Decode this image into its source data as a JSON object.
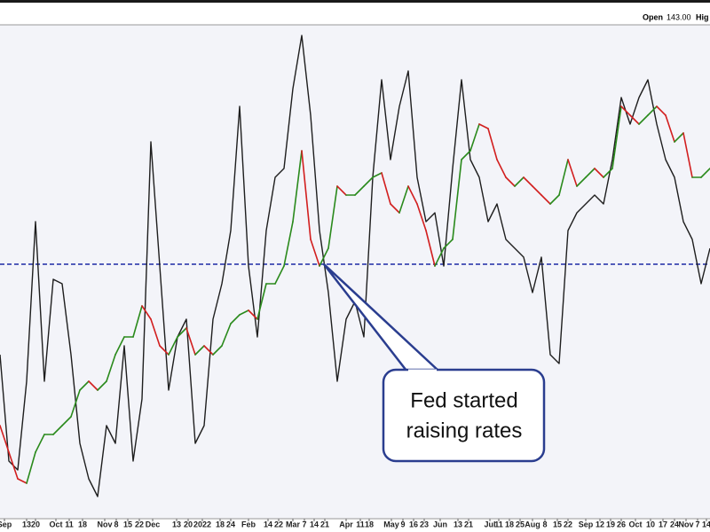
{
  "chart_data": {
    "type": "line",
    "header": {
      "open_label": "Open",
      "open_value": "143.00",
      "next_label": "Hig"
    },
    "series": [
      {
        "name": "Price",
        "color": "#1e1e1e",
        "values": [
          185,
          65,
          55,
          155,
          335,
          155,
          270,
          265,
          185,
          85,
          45,
          25,
          105,
          85,
          195,
          65,
          135,
          425,
          285,
          145,
          205,
          225,
          85,
          105,
          225,
          265,
          325,
          465,
          285,
          205,
          325,
          385,
          395,
          485,
          545,
          455,
          325,
          255,
          155,
          225,
          245,
          205,
          385,
          495,
          405,
          465,
          505,
          385,
          335,
          345,
          285,
          395,
          495,
          405,
          385,
          335,
          355,
          315,
          305,
          295,
          255,
          295,
          185,
          175,
          325,
          345,
          355,
          365,
          355,
          405,
          475,
          445,
          475,
          495,
          445,
          405,
          385,
          335,
          315,
          265,
          305
        ]
      },
      {
        "name": "Average",
        "up_color": "#2a8a1c",
        "down_color": "#d21f1f",
        "values": [
          105,
          75,
          45,
          40,
          75,
          95,
          95,
          105,
          115,
          145,
          155,
          145,
          155,
          185,
          205,
          205,
          240,
          225,
          195,
          185,
          205,
          215,
          185,
          195,
          185,
          195,
          220,
          230,
          235,
          225,
          265,
          265,
          285,
          335,
          415,
          315,
          285,
          305,
          375,
          365,
          365,
          375,
          385,
          390,
          355,
          345,
          375,
          355,
          325,
          285,
          305,
          315,
          405,
          415,
          445,
          440,
          405,
          385,
          375,
          385,
          375,
          365,
          355,
          365,
          405,
          375,
          385,
          395,
          385,
          395,
          465,
          455,
          445,
          455,
          465,
          455,
          425,
          435,
          385,
          385,
          395
        ]
      }
    ],
    "reference_line": {
      "value": 287,
      "color": "#1c2aa6"
    },
    "ylim": [
      0,
      557
    ],
    "xlim": [
      0,
      80
    ],
    "xticks": [
      {
        "value": 0.5,
        "label": "Sep"
      },
      {
        "value": 3,
        "label": "13"
      },
      {
        "value": 4,
        "label": "20"
      },
      {
        "value": 6.3,
        "label": "Oct"
      },
      {
        "value": 7.8,
        "label": "11"
      },
      {
        "value": 9.3,
        "label": "18"
      },
      {
        "value": 11.8,
        "label": "Nov"
      },
      {
        "value": 13.1,
        "label": "8"
      },
      {
        "value": 14.4,
        "label": "15"
      },
      {
        "value": 15.7,
        "label": "22"
      },
      {
        "value": 17.2,
        "label": "Dec"
      },
      {
        "value": 19.9,
        "label": "13"
      },
      {
        "value": 21.2,
        "label": "20"
      },
      {
        "value": 22.8,
        "label": "2022"
      },
      {
        "value": 24.8,
        "label": "18"
      },
      {
        "value": 26,
        "label": "24"
      },
      {
        "value": 28,
        "label": "Feb"
      },
      {
        "value": 30.2,
        "label": "14"
      },
      {
        "value": 31.4,
        "label": "22"
      },
      {
        "value": 33,
        "label": "Mar"
      },
      {
        "value": 34.3,
        "label": "7"
      },
      {
        "value": 35.4,
        "label": "14"
      },
      {
        "value": 36.6,
        "label": "21"
      },
      {
        "value": 39,
        "label": "Apr"
      },
      {
        "value": 40.6,
        "label": "11"
      },
      {
        "value": 41.6,
        "label": "18"
      },
      {
        "value": 44.1,
        "label": "May"
      },
      {
        "value": 45.4,
        "label": "9"
      },
      {
        "value": 46.6,
        "label": "16"
      },
      {
        "value": 47.8,
        "label": "23"
      },
      {
        "value": 49.6,
        "label": "Jun"
      },
      {
        "value": 51.6,
        "label": "13"
      },
      {
        "value": 52.8,
        "label": "21"
      },
      {
        "value": 55.2,
        "label": "Jul"
      },
      {
        "value": 56.2,
        "label": "11"
      },
      {
        "value": 57.4,
        "label": "18"
      },
      {
        "value": 58.6,
        "label": "25"
      },
      {
        "value": 60,
        "label": "Aug"
      },
      {
        "value": 61.4,
        "label": "8"
      },
      {
        "value": 62.8,
        "label": "15"
      },
      {
        "value": 64,
        "label": "22"
      },
      {
        "value": 66,
        "label": "Sep"
      },
      {
        "value": 67.6,
        "label": "12"
      },
      {
        "value": 68.8,
        "label": "19"
      },
      {
        "value": 70,
        "label": "26"
      },
      {
        "value": 71.6,
        "label": "Oct"
      },
      {
        "value": 73.3,
        "label": "10"
      },
      {
        "value": 74.7,
        "label": "17"
      },
      {
        "value": 76,
        "label": "24"
      },
      {
        "value": 77.3,
        "label": "Nov"
      },
      {
        "value": 78.6,
        "label": "7"
      },
      {
        "value": 79.6,
        "label": "14"
      }
    ],
    "annotation": {
      "lines": [
        "Fed started",
        "raising rates"
      ]
    }
  }
}
